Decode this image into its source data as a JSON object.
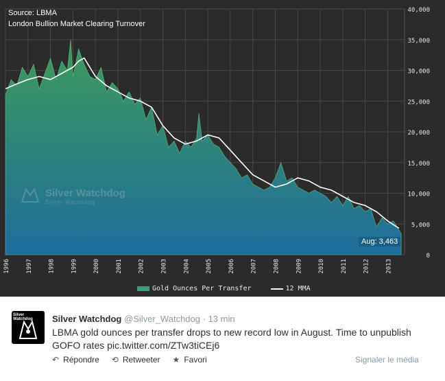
{
  "chart_title": {
    "source": "Source: LBMA",
    "subtitle": "London Bullion Market Clearing Turnover"
  },
  "watermark": {
    "brand": "Silver Watchdog",
    "sub": "Silver Watchdog"
  },
  "callout": "Aug: 3,463",
  "legend": {
    "bar": "Gold Ounces Per Transfer",
    "line": "12 MMA"
  },
  "colors": {
    "panel_bg": "#2b2b2b",
    "area_top": "#3e9b5a",
    "area_bottom": "#1e6d9d",
    "line": "#ffffff",
    "grid": "#4a4a4a",
    "tick_text": "#e6e6e6"
  },
  "chart_data": {
    "type": "area",
    "title": "",
    "xlabel": "",
    "ylabel": "",
    "ylim": [
      0,
      40000
    ],
    "y_ticks": [
      "0",
      "5,000",
      "10,000",
      "15,000",
      "20,000",
      "25,000",
      "30,000",
      "35,000",
      "40,000"
    ],
    "x_ticks": [
      "1996",
      "1997",
      "1998",
      "1999",
      "2000",
      "2001",
      "2002",
      "2003",
      "2004",
      "2005",
      "2006",
      "2007",
      "2008",
      "2009",
      "2010",
      "2011",
      "2012",
      "2013"
    ],
    "series": [
      {
        "name": "Gold Ounces Per Transfer",
        "x": [
          1996.0,
          1996.25,
          1996.5,
          1996.75,
          1997.0,
          1997.25,
          1997.5,
          1997.75,
          1998.0,
          1998.25,
          1998.5,
          1998.75,
          1998.9,
          1999.0,
          1999.25,
          1999.5,
          1999.75,
          2000.0,
          2000.25,
          2000.5,
          2000.75,
          2001.0,
          2001.25,
          2001.5,
          2001.75,
          2002.0,
          2002.25,
          2002.5,
          2002.75,
          2003.0,
          2003.25,
          2003.5,
          2003.75,
          2004.0,
          2004.25,
          2004.5,
          2004.6,
          2004.75,
          2005.0,
          2005.25,
          2005.5,
          2005.75,
          2006.0,
          2006.25,
          2006.5,
          2006.75,
          2007.0,
          2007.25,
          2007.5,
          2007.75,
          2008.0,
          2008.25,
          2008.5,
          2008.75,
          2009.0,
          2009.25,
          2009.5,
          2009.75,
          2010.0,
          2010.25,
          2010.5,
          2010.75,
          2011.0,
          2011.25,
          2011.5,
          2011.75,
          2012.0,
          2012.25,
          2012.5,
          2012.75,
          2013.0,
          2013.25,
          2013.5,
          2013.6
        ],
        "values": [
          26000,
          28500,
          27500,
          30500,
          29000,
          31000,
          27000,
          29500,
          32000,
          28500,
          31500,
          30000,
          35000,
          29000,
          33500,
          31000,
          29000,
          28500,
          30500,
          26500,
          28000,
          27000,
          25000,
          26500,
          24500,
          25500,
          22000,
          24000,
          19500,
          21000,
          17500,
          18500,
          16500,
          18500,
          17500,
          19000,
          23000,
          18500,
          19500,
          18000,
          17500,
          16000,
          15000,
          14000,
          12500,
          13000,
          11500,
          11000,
          10500,
          11000,
          12500,
          15000,
          12000,
          12500,
          11000,
          10500,
          10000,
          10500,
          10000,
          9500,
          8500,
          9500,
          8000,
          9500,
          7500,
          8000,
          7000,
          7500,
          4500,
          6000,
          5000,
          5500,
          4000,
          3463
        ]
      },
      {
        "name": "12 MMA",
        "x": [
          1996.0,
          1996.5,
          1997.0,
          1997.5,
          1998.0,
          1998.5,
          1999.0,
          1999.25,
          1999.5,
          1999.75,
          2000.0,
          2000.5,
          2001.0,
          2001.5,
          2002.0,
          2002.5,
          2003.0,
          2003.5,
          2004.0,
          2004.5,
          2005.0,
          2005.5,
          2006.0,
          2006.5,
          2007.0,
          2007.5,
          2008.0,
          2008.5,
          2009.0,
          2009.5,
          2010.0,
          2010.5,
          2011.0,
          2011.5,
          2012.0,
          2012.5,
          2013.0,
          2013.5
        ],
        "values": [
          27000,
          27800,
          28500,
          29000,
          28500,
          29500,
          30500,
          31500,
          32000,
          30500,
          29000,
          27500,
          26500,
          25500,
          25000,
          24000,
          21000,
          19000,
          18000,
          18500,
          19500,
          19000,
          17000,
          15000,
          13000,
          12000,
          11000,
          11500,
          12500,
          12000,
          11000,
          10500,
          9500,
          8500,
          8000,
          7000,
          5500,
          4300
        ]
      }
    ]
  },
  "tweet": {
    "avatar_label": "Silver Watchdog",
    "name": "Silver Watchdog",
    "handle": "@Silver_Watchdog",
    "time": "· 13 min",
    "text": "LBMA gold ounces per transfer drops to new record low in August. Time to unpublish GOFO rates pic.twitter.com/ZTw3tiCEj6",
    "actions": [
      "Répondre",
      "Retweeter",
      "Favori"
    ],
    "report": "Signaler le média"
  }
}
